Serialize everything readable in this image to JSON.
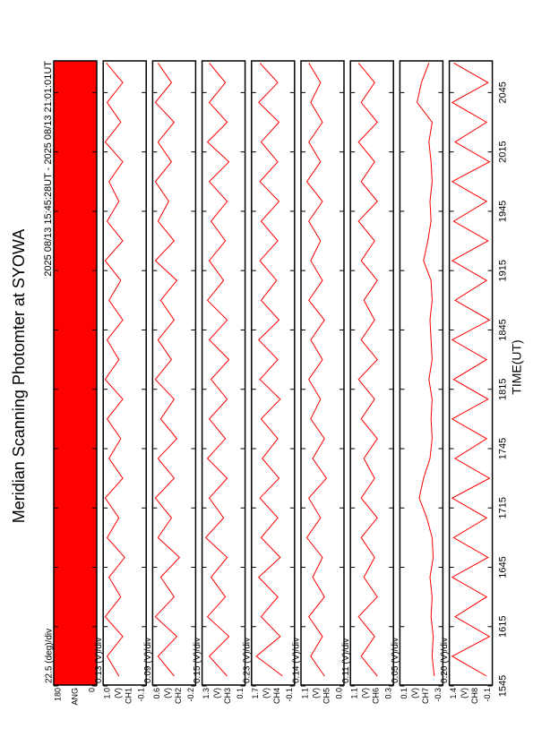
{
  "chart_data": {
    "type": "line",
    "title": "Meridian Scanning Photomter at SYOWA",
    "subtitle": "2025 08/13 15:45:28UT - 2025 08/13 21:01:01UT",
    "xlabel": "TIME(UT)",
    "xlim": [
      945.47,
      1261.02
    ],
    "xticks": [
      {
        "value": 945,
        "label": "1545"
      },
      {
        "value": 975,
        "label": "1615"
      },
      {
        "value": 1005,
        "label": "1645"
      },
      {
        "value": 1035,
        "label": "1715"
      },
      {
        "value": 1065,
        "label": "1745"
      },
      {
        "value": 1095,
        "label": "1815"
      },
      {
        "value": 1125,
        "label": "1845"
      },
      {
        "value": 1155,
        "label": "1915"
      },
      {
        "value": 1185,
        "label": "1945"
      },
      {
        "value": 1215,
        "label": "2015"
      },
      {
        "value": 1245,
        "label": "2045"
      }
    ],
    "x": [
      950,
      960,
      970,
      980,
      990,
      1000,
      1010,
      1020,
      1030,
      1040,
      1050,
      1060,
      1070,
      1080,
      1090,
      1100,
      1110,
      1120,
      1130,
      1140,
      1150,
      1160,
      1170,
      1180,
      1190,
      1200,
      1210,
      1220,
      1230,
      1240,
      1250,
      1260
    ],
    "panels": [
      {
        "ylabel": "ANG",
        "scale": "22.5 (deg)/div",
        "ylim": [
          0,
          180
        ],
        "yticks": [
          0,
          180
        ],
        "fill": "#ff0000"
      },
      {
        "ylabel": "CH1",
        "unit": "(V)",
        "scale": "0.13 (V)/div",
        "ylim": [
          -0.1,
          1.0
        ],
        "yticks": [
          -0.1,
          {
            "value": 1,
            "label": "1.0"
          }
        ],
        "color": "#ff0000",
        "values": [
          0.6,
          0.9,
          0.5,
          0.95,
          0.55,
          0.85,
          0.45,
          0.9,
          0.6,
          0.95,
          0.5,
          0.85,
          0.55,
          0.9,
          0.5,
          0.95,
          0.6,
          0.9,
          0.5,
          0.85,
          0.55,
          0.95,
          0.5,
          0.9,
          0.6,
          0.85,
          0.5,
          0.95,
          0.55,
          0.9,
          0.5,
          0.92
        ]
      },
      {
        "ylabel": "CH2",
        "unit": "(V)",
        "scale": "0.09 (V)/div",
        "ylim": [
          -0.2,
          0.6
        ],
        "yticks": [
          -0.2,
          0.6
        ],
        "color": "#ff0000",
        "values": [
          0.2,
          0.5,
          0.15,
          0.55,
          0.2,
          0.45,
          0.1,
          0.5,
          0.25,
          0.55,
          0.2,
          0.5,
          0.15,
          0.45,
          0.2,
          0.55,
          0.25,
          0.5,
          0.2,
          0.45,
          0.15,
          0.55,
          0.2,
          0.5,
          0.3,
          0.55,
          0.25,
          0.5,
          0.2,
          0.55,
          0.25,
          0.5
        ]
      },
      {
        "ylabel": "CH3",
        "unit": "(V)",
        "scale": "0.15 (V)/div",
        "ylim": [
          0.1,
          1.3
        ],
        "yticks": [
          0.1,
          1.3
        ],
        "color": "#ff0000",
        "values": [
          0.6,
          1.1,
          0.55,
          1.15,
          0.65,
          1.05,
          0.6,
          1.2,
          0.7,
          1.1,
          0.6,
          1.15,
          0.65,
          1.1,
          0.6,
          1.05,
          0.55,
          1.1,
          0.6,
          1.15,
          0.7,
          1.1,
          0.65,
          1.05,
          0.6,
          1.1,
          0.55,
          1.15,
          0.6,
          1.1,
          0.65,
          1.1
        ]
      },
      {
        "ylabel": "CH4",
        "unit": "(V)",
        "scale": "0.23 (V)/div",
        "ylim": [
          -0.1,
          1.7
        ],
        "yticks": [
          -0.1,
          1.7
        ],
        "color": "#ff0000",
        "values": [
          0.4,
          1.5,
          0.5,
          1.3,
          0.6,
          1.4,
          0.5,
          1.3,
          0.6,
          1.35,
          0.55,
          1.25,
          0.6,
          1.3,
          0.5,
          1.35,
          0.6,
          1.4,
          0.55,
          1.3,
          0.65,
          1.35,
          0.6,
          1.3,
          0.55,
          1.35,
          0.6,
          1.3,
          0.55,
          1.4,
          0.6,
          1.35
        ]
      },
      {
        "ylabel": "CH5",
        "unit": "(V)",
        "scale": "0.14 (V)/div",
        "ylim": [
          0.0,
          1.1
        ],
        "yticks": [
          {
            "value": 0,
            "label": "0.0"
          },
          1.1
        ],
        "color": "#ff0000",
        "values": [
          0.5,
          0.85,
          0.55,
          0.9,
          0.5,
          0.8,
          0.55,
          0.95,
          0.6,
          0.9,
          0.45,
          0.8,
          0.5,
          0.85,
          0.6,
          0.9,
          0.55,
          0.85,
          0.5,
          0.9,
          0.55,
          0.85,
          0.6,
          0.9,
          0.55,
          0.95,
          0.6,
          0.9,
          0.55,
          0.85,
          0.6,
          0.9
        ]
      },
      {
        "ylabel": "CH6",
        "unit": "(V)",
        "scale": "0.11 (V)/div",
        "ylim": [
          0.3,
          1.1
        ],
        "yticks": [
          0.3,
          1.1
        ],
        "color": "#ff0000",
        "values": [
          0.6,
          0.9,
          0.65,
          0.95,
          0.6,
          0.85,
          0.65,
          0.9,
          0.6,
          0.9,
          0.65,
          0.85,
          0.6,
          0.9,
          0.65,
          0.95,
          0.6,
          0.9,
          0.65,
          0.85,
          0.6,
          0.9,
          0.65,
          0.95,
          0.6,
          0.9,
          0.65,
          0.95,
          0.6,
          0.9,
          0.65,
          0.95
        ]
      },
      {
        "ylabel": "CH7",
        "unit": "(V)",
        "scale": "0.05 (V)/div",
        "ylim": [
          -0.3,
          0.1
        ],
        "yticks": [
          -0.3,
          0.1
        ],
        "color": "#ff0000",
        "values": [
          -0.22,
          -0.2,
          -0.21,
          -0.19,
          -0.2,
          -0.18,
          -0.21,
          -0.2,
          -0.15,
          -0.08,
          -0.12,
          -0.18,
          -0.2,
          -0.19,
          -0.2,
          -0.17,
          -0.2,
          -0.19,
          -0.18,
          -0.2,
          -0.19,
          -0.12,
          -0.16,
          -0.19,
          -0.18,
          -0.2,
          -0.19,
          -0.17,
          -0.2,
          -0.06,
          -0.1,
          -0.17
        ]
      },
      {
        "ylabel": "CH8",
        "unit": "(V)",
        "scale": "0.20 (V)/div",
        "ylim": [
          -0.1,
          1.4
        ],
        "yticks": [
          -0.1,
          1.4
        ],
        "color": "#ff0000",
        "values": [
          0.1,
          1.3,
          0.0,
          1.2,
          0.1,
          1.3,
          0.05,
          1.25,
          0.1,
          1.3,
          0.0,
          1.2,
          0.1,
          1.3,
          0.05,
          1.25,
          0.1,
          1.3,
          0.0,
          1.2,
          0.1,
          1.3,
          0.05,
          1.25,
          0.1,
          1.3,
          0.0,
          1.2,
          0.1,
          1.3,
          0.05,
          1.25
        ]
      }
    ]
  }
}
